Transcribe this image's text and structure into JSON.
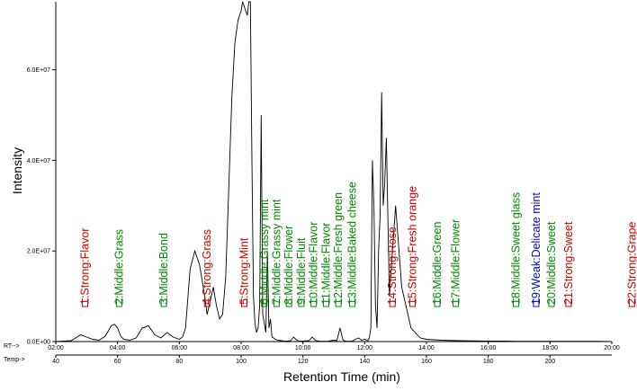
{
  "chart_data": {
    "type": "line",
    "ylabel": "Intensity",
    "xlabel": "Retention Time (min)",
    "rt_axis": {
      "label": "RT-->",
      "ticks": [
        {
          "v": 2,
          "t": "02:00"
        },
        {
          "v": 4,
          "t": "04:00"
        },
        {
          "v": 6,
          "t": "06:00"
        },
        {
          "v": 8,
          "t": "08:00"
        },
        {
          "v": 10,
          "t": "10:00"
        },
        {
          "v": 12,
          "t": "12:00"
        },
        {
          "v": 14,
          "t": "14:00"
        },
        {
          "v": 16,
          "t": "16:00"
        },
        {
          "v": 18,
          "t": "18:00"
        },
        {
          "v": 20,
          "t": "20:00"
        }
      ],
      "range": [
        2,
        20
      ]
    },
    "temp_axis": {
      "label": "Temp->",
      "ticks": [
        {
          "v": 40,
          "t": "40"
        },
        {
          "v": 60,
          "t": "60"
        },
        {
          "v": 80,
          "t": "80"
        },
        {
          "v": 100,
          "t": "100"
        },
        {
          "v": 120,
          "t": "120"
        },
        {
          "v": 140,
          "t": "140"
        },
        {
          "v": 160,
          "t": "160"
        },
        {
          "v": 180,
          "t": "180"
        },
        {
          "v": 200,
          "t": "200"
        }
      ],
      "range": [
        40,
        220
      ]
    },
    "y_ticks": [
      {
        "v": 0,
        "t": "0.0E+00"
      },
      {
        "v": 20000000,
        "t": "2.0E+07"
      },
      {
        "v": 40000000,
        "t": "4.0E+07"
      },
      {
        "v": 60000000,
        "t": "6.0E+07"
      }
    ],
    "ylim": [
      0,
      75000000
    ],
    "series": [
      {
        "x": [
          2.0,
          2.5,
          2.8,
          3.0,
          3.2,
          3.4,
          3.6,
          3.8,
          3.9,
          4.0,
          4.1,
          4.2,
          4.4,
          4.6,
          4.8,
          5.0,
          5.2,
          5.4,
          5.6,
          5.8,
          6.0,
          6.1,
          6.2,
          6.35,
          6.5,
          6.65,
          6.8,
          6.9,
          7.0,
          7.1,
          7.2,
          7.3,
          7.4,
          7.5,
          7.6,
          7.7,
          7.8,
          7.9,
          8.0,
          8.05,
          8.1,
          8.15,
          8.2,
          8.25,
          8.3,
          8.35,
          8.4,
          8.45,
          8.5,
          8.55,
          8.6,
          8.65,
          8.7,
          8.75,
          8.8,
          8.85,
          8.9,
          8.95,
          9.0,
          9.05,
          9.1,
          9.2,
          9.3,
          9.4,
          9.5,
          9.6,
          9.7,
          9.8,
          9.9,
          10.0,
          10.1,
          10.2,
          10.3,
          10.4,
          10.5,
          10.6,
          10.7,
          10.8,
          10.9,
          11.0,
          11.1,
          11.2,
          11.3,
          11.4,
          11.5,
          11.6,
          11.7,
          11.8,
          11.9,
          12.0,
          12.1,
          12.15,
          12.2,
          12.25,
          12.3,
          12.35,
          12.4,
          12.45,
          12.5,
          12.55,
          12.6,
          12.65,
          12.7,
          12.8,
          12.9,
          13.0,
          13.2,
          13.5,
          13.8,
          14.0,
          14.5,
          15.0,
          15.5,
          16.0,
          16.5,
          17.0,
          17.5,
          18.0,
          18.5,
          19.0,
          19.5,
          20.0
        ],
        "y": [
          0,
          200000,
          1500000,
          1000000,
          500000,
          300000,
          1200000,
          3500000,
          3800000,
          3000000,
          1200000,
          500000,
          300000,
          800000,
          3000000,
          3500000,
          1500000,
          800000,
          2000000,
          1000000,
          500000,
          1000000,
          3000000,
          16000000,
          20000000,
          17000000,
          11000000,
          6000000,
          9000000,
          12000000,
          8000000,
          5000000,
          6000000,
          14000000,
          34000000,
          54000000,
          66000000,
          71000000,
          73000000,
          76000000,
          74000000,
          73000000,
          72000000,
          76000000,
          76000000,
          40000000,
          10000000,
          4000000,
          2000000,
          3000000,
          8000000,
          50000000,
          6000000,
          4000000,
          2000000,
          20000000,
          3000000,
          5000000,
          1000000,
          800000,
          500000,
          300000,
          200000,
          100000,
          100000,
          200000,
          1000000,
          300000,
          100000,
          100000,
          150000,
          200000,
          1000000,
          300000,
          100000,
          50000,
          50000,
          50000,
          200000,
          300000,
          200000,
          3000000,
          300000,
          50000,
          50000,
          100000,
          500000,
          800000,
          300000,
          500000,
          200000,
          800000,
          3000000,
          40000000,
          30000000,
          8000000,
          3000000,
          20000000,
          28000000,
          55000000,
          30000000,
          35000000,
          45000000,
          10000000,
          20000000,
          30000000,
          12000000,
          3000000,
          800000,
          500000,
          300000,
          200000,
          150000,
          100000,
          100000,
          50000,
          50000,
          50000,
          50000,
          50000,
          50000,
          0
        ]
      }
    ],
    "peak_labels": [
      {
        "t": "1:Strong:Flavor",
        "x": 2.95,
        "c": "#cc0000"
      },
      {
        "t": "2:Middle:Grass",
        "x": 4.05,
        "c": "#008800"
      },
      {
        "t": "3:Middle:Bond",
        "x": 5.5,
        "c": "#008800"
      },
      {
        "t": "4:Strong:Grass",
        "x": 6.9,
        "c": "#cc0000"
      },
      {
        "t": "5:Strong:Mint",
        "x": 8.1,
        "c": "#cc0000"
      },
      {
        "t": "6:Middle:Grassy mint",
        "x": 8.75,
        "c": "#008800"
      },
      {
        "t": "7:Middle:Grassy mint",
        "x": 9.15,
        "c": "#008800"
      },
      {
        "t": "8:Middle:Flower",
        "x": 9.55,
        "c": "#008800"
      },
      {
        "t": "9:Middle:Fluit",
        "x": 9.95,
        "c": "#008800"
      },
      {
        "t": "10:Middle:Flavor",
        "x": 10.35,
        "c": "#008800"
      },
      {
        "t": "11:Middle:Flavor",
        "x": 10.75,
        "c": "#008800"
      },
      {
        "t": "12:Middle:Fresh green",
        "x": 11.15,
        "c": "#008800"
      },
      {
        "t": "13:Middle:Baked cheese",
        "x": 11.6,
        "c": "#008800"
      },
      {
        "t": "14:Strong:Rose",
        "x": 12.9,
        "c": "#cc0000"
      },
      {
        "t": "15:Strong:Fresh orange",
        "x": 13.55,
        "c": "#cc0000"
      },
      {
        "t": "16:Middle:Green",
        "x": 14.35,
        "c": "#008800"
      },
      {
        "t": "17:Middle:Flower",
        "x": 14.95,
        "c": "#008800"
      },
      {
        "t": "18:Middle:Sweet glass",
        "x": 16.9,
        "c": "#008800"
      },
      {
        "t": "19:Weak:Delicate mint",
        "x": 17.55,
        "c": "#0000cc"
      },
      {
        "t": "20:Middle:Sweet",
        "x": 18.05,
        "c": "#008800"
      },
      {
        "t": "21:Strong:Sweet",
        "x": 18.6,
        "c": "#cc0000"
      },
      {
        "t": "22:Strong:Grape",
        "x": 20.65,
        "c": "#cc0000"
      }
    ]
  }
}
